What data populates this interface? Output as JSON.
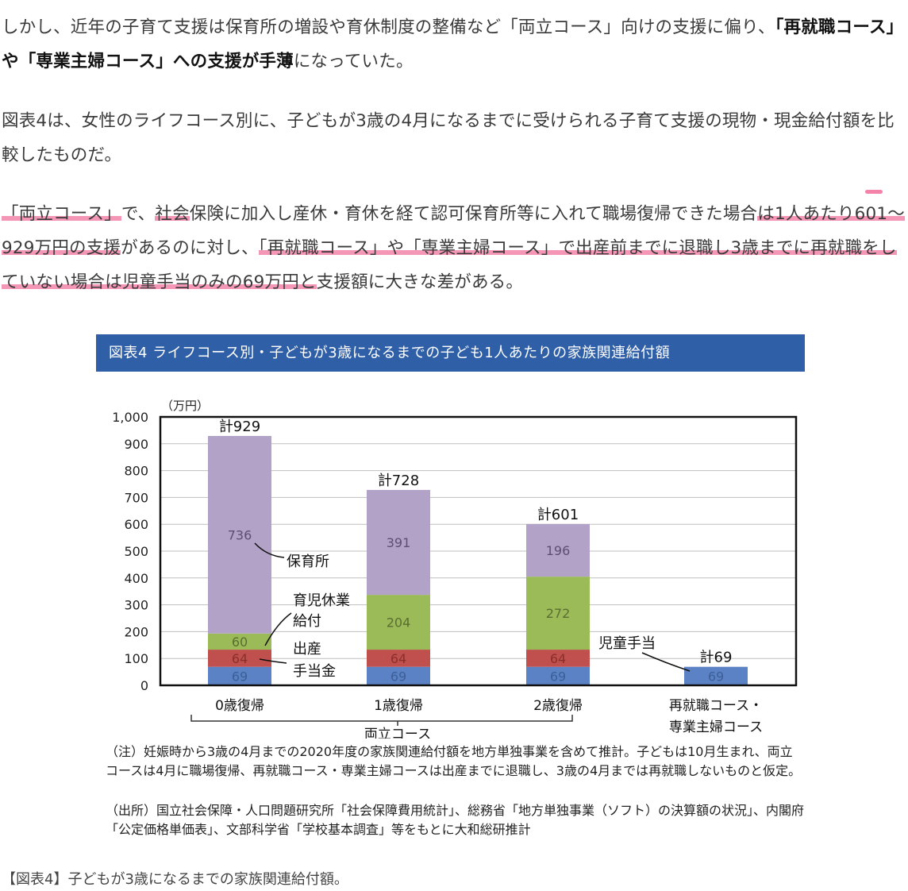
{
  "article": {
    "p1": [
      {
        "text": "しかし、近年の子育て支援は保育所の増設や育休制度の整備など「両立コース」向けの支援に偏り、",
        "bold": false
      },
      {
        "text": "「再就職コース」や「専業主婦コース」への支援が手薄",
        "bold": true
      },
      {
        "text": "になっていた。",
        "bold": false
      }
    ],
    "p2": "図表4は、女性のライフコース別に、子どもが3歳の4月になるまでに受けられる子育て支援の現物・現金給付額を比較したものだ。",
    "p3": [
      {
        "text": "「両立コース」",
        "hl": true
      },
      {
        "text": "で、",
        "hl": false
      },
      {
        "text": "社会",
        "hl": true
      },
      {
        "text": "保険に加入し産休・育休を経て認可保育所等に入れて職場復帰できた場合",
        "hl": false
      },
      {
        "text": "は1人あたり601～929万円の支援",
        "hl": true
      },
      {
        "text": "があるのに対し、",
        "hl": false
      },
      {
        "text": "「再就職コース」や「専業主婦コース」で出産前までに退職し3歳までに再就職をしていない場合は児童手当のみの69万円と",
        "hl": true
      },
      {
        "text": "支援額に大きな差がある。",
        "hl": false
      }
    ]
  },
  "figure": {
    "banner_title": "図表4 ライフコース別・子どもが3歳になるまでの子ども1人あたりの家族関連給付額",
    "note": "（注）妊娠時から3歳の4月までの2020年度の家族関連給付額を地方単独事業を含めて推計。子どもは10月生まれ、両立コースは4月に職場復帰、再就職コース・専業主婦コースは出産までに退職し、3歳の4月までは再就職しないものと仮定。",
    "source": "（出所）国立社会保障・人口問題研究所「社会保障費用統計」、総務省「地方単独事業（ソフト）の決算額の状況」、内閣府「公定価格単価表」、文部科学省「学校基本調査」等をもとに大和総研推計",
    "caption": "【図表4】子どもが3歳になるまでの家族関連給付額。"
  },
  "chart_data": {
    "type": "bar",
    "stacked": true,
    "unit_label": "（万円）",
    "ylim": [
      0,
      1000
    ],
    "yticks": [
      "0",
      "100",
      "200",
      "300",
      "400",
      "500",
      "600",
      "700",
      "800",
      "900",
      "1,000"
    ],
    "categories": [
      "0歳復帰",
      "1歳復帰",
      "2歳復帰",
      "再就職コース・専業主婦コース"
    ],
    "group_label": "両立コース",
    "series": [
      {
        "name": "児童手当",
        "color": "#5b82c4",
        "values": [
          69,
          69,
          69,
          69
        ]
      },
      {
        "name": "出産手当金",
        "color": "#c0504d",
        "values": [
          64,
          64,
          64,
          0
        ]
      },
      {
        "name": "育児休業給付",
        "color": "#9bbb59",
        "values": [
          60,
          204,
          272,
          0
        ]
      },
      {
        "name": "保育所",
        "color": "#b2a2c7",
        "values": [
          736,
          391,
          196,
          0
        ]
      }
    ],
    "totals": [
      "計929",
      "計728",
      "計601",
      "計69"
    ],
    "annotations": {
      "hoikusho": "保育所",
      "ikuji_line1": "育児休業",
      "ikuji_line2": "給付",
      "shussan_line1": "出産",
      "shussan_line2": "手当金",
      "jido": "児童手当"
    },
    "grid": true,
    "gridlines": "horizontal"
  }
}
